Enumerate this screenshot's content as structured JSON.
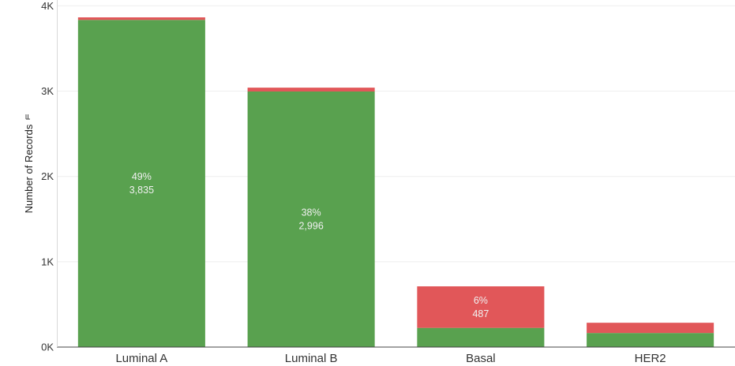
{
  "chart_data": {
    "type": "bar",
    "stacked": true,
    "ylabel": "Number of Records",
    "filter_icon": "filter-icon",
    "categories": [
      "Luminal A",
      "Luminal B",
      "Basal",
      "HER2"
    ],
    "y_ticks": [
      {
        "value": 0,
        "label": "0K"
      },
      {
        "value": 1000,
        "label": "1K"
      },
      {
        "value": 2000,
        "label": "2K"
      },
      {
        "value": 3000,
        "label": "3K"
      },
      {
        "value": 4000,
        "label": "4K"
      }
    ],
    "ylim": [
      0,
      4050
    ],
    "grid": true,
    "series": [
      {
        "color": "#59a14f",
        "values": [
          3835,
          2996,
          225,
          165
        ]
      },
      {
        "color": "#e15759",
        "values": [
          30,
          45,
          487,
          120
        ]
      }
    ],
    "data_labels": [
      {
        "category": "Luminal A",
        "series_index": 0,
        "lines": [
          "49%",
          "3,835"
        ]
      },
      {
        "category": "Luminal B",
        "series_index": 0,
        "lines": [
          "38%",
          "2,996"
        ]
      },
      {
        "category": "Basal",
        "series_index": 1,
        "lines": [
          "6%",
          "487"
        ]
      }
    ]
  }
}
